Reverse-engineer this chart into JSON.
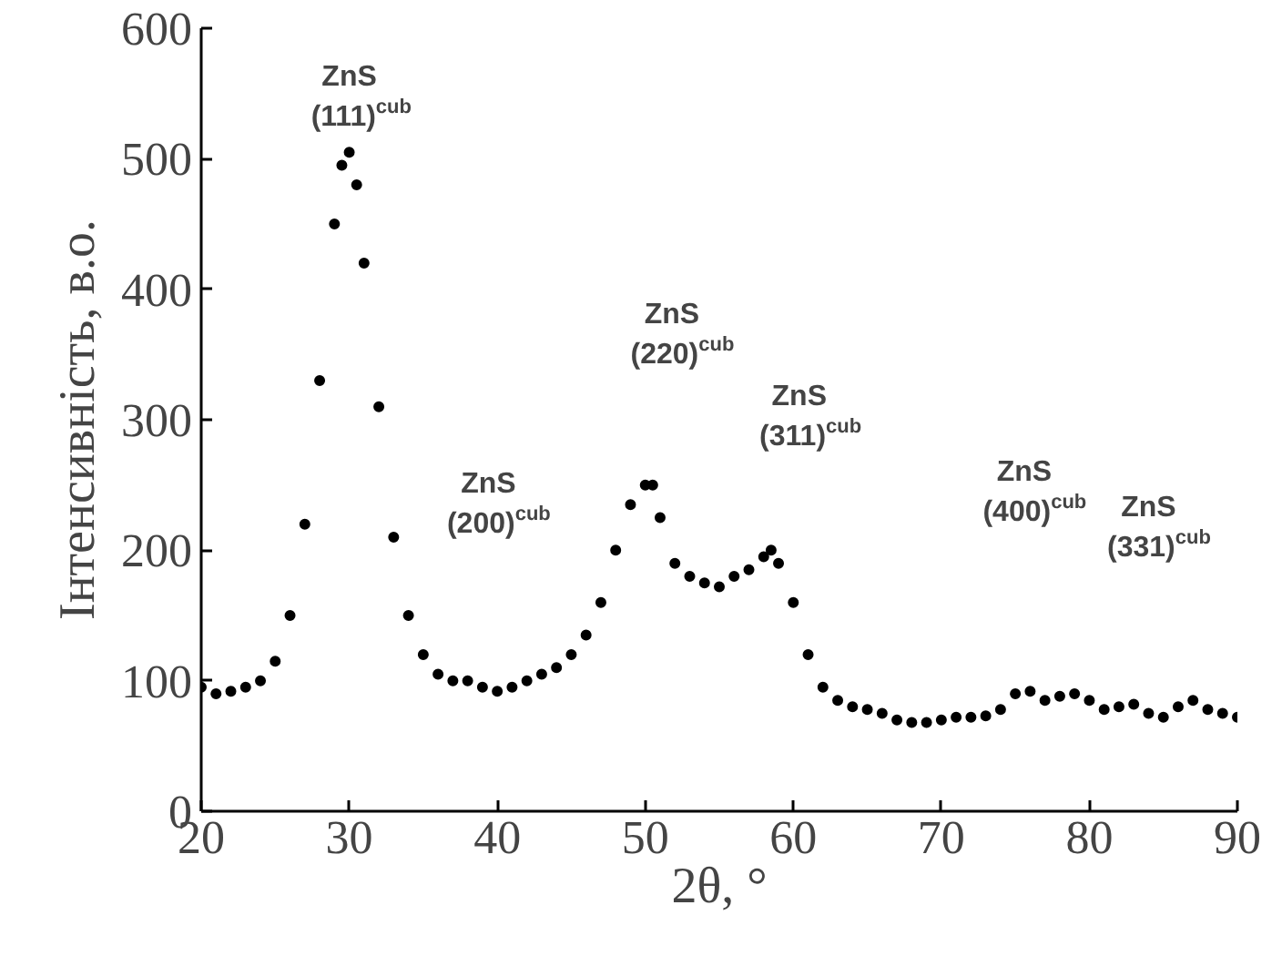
{
  "chart_data": {
    "type": "scatter",
    "xlabel": "2θ, °",
    "ylabel": "Інтенсивність, в.о.",
    "marker": "circle",
    "grid": false,
    "xlim": [
      20,
      90
    ],
    "ylim": [
      0,
      600
    ],
    "xticks": [
      20,
      30,
      40,
      50,
      60,
      70,
      80,
      90
    ],
    "yticks": [
      0,
      100,
      200,
      300,
      400,
      500,
      600
    ],
    "series": [
      {
        "color": "#000000",
        "x": [
          20,
          21,
          22,
          23,
          24,
          25,
          26,
          27,
          28,
          29,
          29.5,
          30,
          30.5,
          31,
          32,
          33,
          34,
          35,
          36,
          37,
          38,
          39,
          40,
          41,
          42,
          43,
          44,
          45,
          46,
          47,
          48,
          49,
          50,
          50.5,
          51,
          52,
          53,
          54,
          55,
          56,
          57,
          58,
          58.5,
          59,
          60,
          61,
          62,
          63,
          64,
          65,
          66,
          67,
          68,
          69,
          70,
          71,
          72,
          73,
          74,
          75,
          76,
          77,
          78,
          79,
          80,
          81,
          82,
          83,
          84,
          85,
          86,
          87,
          88,
          89,
          90
        ],
        "values": [
          95,
          90,
          92,
          95,
          100,
          115,
          150,
          220,
          330,
          450,
          495,
          505,
          480,
          420,
          310,
          210,
          150,
          120,
          105,
          100,
          100,
          95,
          92,
          95,
          100,
          105,
          110,
          120,
          135,
          160,
          200,
          235,
          250,
          250,
          225,
          190,
          180,
          175,
          172,
          180,
          185,
          195,
          200,
          190,
          160,
          120,
          95,
          85,
          80,
          78,
          75,
          70,
          68,
          68,
          70,
          72,
          72,
          73,
          78,
          90,
          92,
          85,
          88,
          90,
          85,
          78,
          80,
          82,
          75,
          72,
          80,
          85,
          78,
          75,
          72
        ]
      }
    ],
    "annotations": [
      "ZnS\n(111)$^{cub}$",
      "ZnS\n(200)$^{cub}$",
      "ZnS\n(220)$^{cub}$",
      "ZnS\n(311)$^{cub}$",
      "ZnS\n(400)$^{cub}$",
      "ZnS\n(331)$^{cub}$"
    ]
  }
}
